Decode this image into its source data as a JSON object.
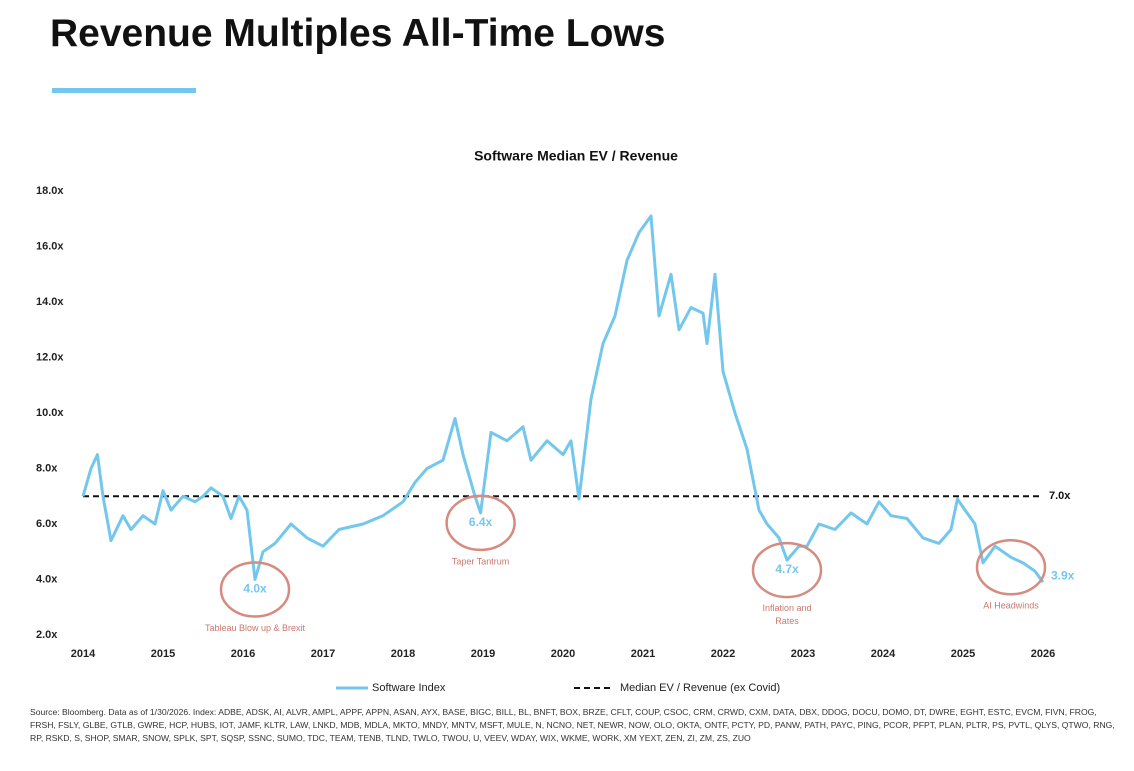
{
  "header": {
    "title": "Revenue Multiples All-Time Lows"
  },
  "chart_data": {
    "type": "line",
    "title": "Software Median EV / Revenue",
    "xlim": [
      2014,
      2027
    ],
    "xticks": [
      2014,
      2015,
      2016,
      2017,
      2018,
      2019,
      2020,
      2021,
      2022,
      2023,
      2024,
      2025,
      2026
    ],
    "ylim": [
      2,
      18
    ],
    "yticks": [
      {
        "value": 2,
        "label": "2.0x"
      },
      {
        "value": 4,
        "label": "4.0x"
      },
      {
        "value": 6,
        "label": "6.0x"
      },
      {
        "value": 8,
        "label": "8.0x"
      },
      {
        "value": 10,
        "label": "10.0x"
      },
      {
        "value": 12,
        "label": "12.0x"
      },
      {
        "value": 14,
        "label": "14.0x"
      },
      {
        "value": 16,
        "label": "16.0x"
      },
      {
        "value": 18,
        "label": "18.0x"
      }
    ],
    "series": [
      {
        "name": "Software Index",
        "color": "#74c7ec",
        "end_label": "3.9x",
        "x": [
          2014.0,
          2014.1,
          2014.18,
          2014.25,
          2014.35,
          2014.5,
          2014.6,
          2014.75,
          2014.9,
          2015.0,
          2015.1,
          2015.25,
          2015.4,
          2015.5,
          2015.6,
          2015.75,
          2015.85,
          2015.95,
          2016.05,
          2016.15,
          2016.25,
          2016.4,
          2016.6,
          2016.8,
          2017.0,
          2017.2,
          2017.5,
          2017.75,
          2018.0,
          2018.15,
          2018.3,
          2018.5,
          2018.65,
          2018.75,
          2018.9,
          2018.97,
          2019.1,
          2019.3,
          2019.5,
          2019.6,
          2019.8,
          2020.0,
          2020.1,
          2020.2,
          2020.35,
          2020.5,
          2020.65,
          2020.8,
          2020.95,
          2021.1,
          2021.2,
          2021.35,
          2021.45,
          2021.6,
          2021.75,
          2021.8,
          2021.9,
          2022.0,
          2022.15,
          2022.3,
          2022.45,
          2022.55,
          2022.7,
          2022.8,
          2022.95,
          2023.05,
          2023.2,
          2023.4,
          2023.6,
          2023.8,
          2023.95,
          2024.1,
          2024.3,
          2024.5,
          2024.7,
          2024.85,
          2024.93,
          2025.05,
          2025.15,
          2025.25,
          2025.4,
          2025.6,
          2025.75,
          2025.9,
          2026.0
        ],
        "values": [
          7.0,
          8.0,
          8.5,
          7.0,
          5.4,
          6.3,
          5.8,
          6.3,
          6.0,
          7.2,
          6.5,
          7.0,
          6.8,
          7.0,
          7.3,
          7.0,
          6.2,
          7.0,
          6.5,
          4.0,
          5.0,
          5.3,
          6.0,
          5.5,
          5.2,
          5.8,
          6.0,
          6.3,
          6.8,
          7.5,
          8.0,
          8.3,
          9.8,
          8.5,
          7.0,
          6.4,
          9.3,
          9.0,
          9.5,
          8.3,
          9.0,
          8.5,
          9.0,
          6.9,
          10.5,
          12.5,
          13.5,
          15.5,
          16.5,
          17.1,
          13.5,
          15.0,
          13.0,
          13.8,
          13.6,
          12.5,
          15.0,
          11.5,
          10.0,
          8.7,
          6.5,
          6.0,
          5.5,
          4.7,
          5.2,
          5.2,
          6.0,
          5.8,
          6.4,
          6.0,
          6.8,
          6.3,
          6.2,
          5.5,
          5.3,
          5.8,
          6.9,
          6.4,
          6.0,
          4.6,
          5.2,
          4.8,
          4.6,
          4.3,
          3.9
        ]
      }
    ],
    "reference_line": {
      "name": "Median EV / Revenue (ex Covid)",
      "value": 7,
      "label": "7.0x"
    },
    "annotations": [
      {
        "x": 2016.15,
        "value": 4.0,
        "label": "4.0x",
        "text": "Tableau Blow up & Brexit"
      },
      {
        "x": 2018.97,
        "value": 6.4,
        "label": "6.4x",
        "text": "Taper Tantrum"
      },
      {
        "x": 2022.8,
        "value": 4.7,
        "label": "4.7x",
        "text": "Inflation and Rates"
      },
      {
        "x": 2025.6,
        "value": 4.8,
        "text": "AI Headwinds"
      }
    ],
    "source": "Source: Bloomberg. Data as of 1/30/2026. Index: ADBE, ADSK, AI, ALVR, AMPL, APPF, APPN, ASAN, AYX, BASE, BIGC, BILL, BL, BNFT, BOX, BRZE, CFLT, COUP, CSOC, CRM, CRWD, CXM, DATA, DBX, DDOG, DOCU, DOMO, DT, DWRE, EGHT, ESTC, EVCM, FIVN, FROG, FRSH, FSLY, GLBE, GTLB, GWRE, HCP, HUBS, IOT, JAMF, KLTR, LAW, LNKD, MDB, MDLA, MKTO, MNDY, MNTV, MSFT, MULE, N, NCNO, NET, NEWR, NOW, OLO, OKTA, ONTF, PCTY, PD, PANW, PATH, PAYC, PING, PCOR, PFPT, PLAN, PLTR, PS, PVTL, QLYS, QTWO, RNG, RP, RSKD, S, SHOP, SMAR, SNOW, SPLK, SPT, SQSP, SSNC, SUMO, TDC, TEAM, TENB, TLND, TWLO, TWOU, U, VEEV, WDAY, WIX, WKME, WORK, XM YEXT, ZEN, ZI, ZM, ZS, ZUO"
  }
}
